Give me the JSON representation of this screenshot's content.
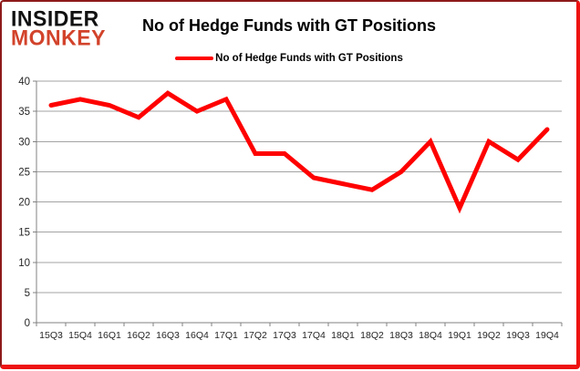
{
  "brand": {
    "line1": "INSIDER",
    "line2": "MONKEY"
  },
  "title": "No of Hedge Funds with GT Positions",
  "legend": {
    "label": "No of Hedge Funds with GT Positions",
    "swatch_color": "#ff0000"
  },
  "chart_data": {
    "type": "line",
    "title": "No of Hedge Funds with GT Positions",
    "categories": [
      "15Q3",
      "15Q4",
      "16Q1",
      "16Q2",
      "16Q3",
      "16Q4",
      "17Q1",
      "17Q2",
      "17Q3",
      "17Q4",
      "18Q1",
      "18Q2",
      "18Q3",
      "18Q4",
      "19Q1",
      "19Q2",
      "19Q3",
      "19Q4"
    ],
    "series": [
      {
        "name": "No of Hedge Funds with GT Positions",
        "color": "#ff0000",
        "values": [
          36,
          37,
          36,
          34,
          38,
          35,
          37,
          28,
          28,
          24,
          23,
          22,
          25,
          30,
          19,
          30,
          27,
          32
        ]
      }
    ],
    "xlabel": "",
    "ylabel": "",
    "ylim": [
      0,
      40
    ],
    "ytick_step": 5,
    "grid": true,
    "legend_position": "top"
  },
  "colors": {
    "line": "#ff0000",
    "grid": "#a3a3a3",
    "axis": "#808080",
    "tick_label": "#262626",
    "brand_red": "#d2432b",
    "frame": "#ee1111"
  }
}
